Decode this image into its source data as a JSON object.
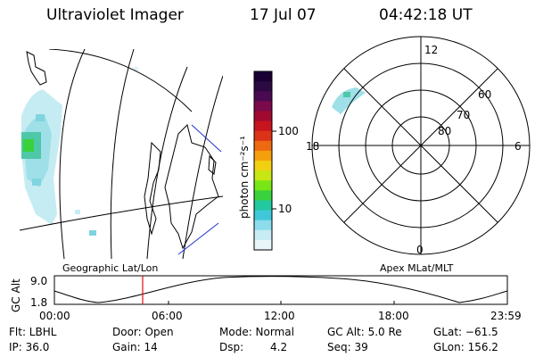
{
  "header": {
    "title": "Ultraviolet Imager",
    "date": "17 Jul 07",
    "time": "04:42:18 UT"
  },
  "colorbar": {
    "unit_label": "photon cm⁻²s⁻¹",
    "ticks": [
      "100",
      "10"
    ],
    "colors": [
      "#1a0033",
      "#2a0a40",
      "#4a0a50",
      "#7a0a4a",
      "#a00a30",
      "#c8141e",
      "#dc3218",
      "#ee6a10",
      "#f5a00a",
      "#f0d010",
      "#c8e614",
      "#78e614",
      "#3ad23c",
      "#22c8a0",
      "#40c8d8",
      "#8cdcec",
      "#c8ecf4",
      "#e8f6fa"
    ]
  },
  "geographic_panel": {
    "label": "Geographic Lat/Lon"
  },
  "polar_panel": {
    "label": "Apex MLat/MLT",
    "mlt_labels": [
      "12",
      "18",
      "6",
      "0"
    ],
    "mlat_labels": [
      "60",
      "70",
      "80"
    ]
  },
  "altitude_plot": {
    "ylabel": "GC Alt",
    "yticks": [
      "9.0",
      "1.8"
    ],
    "xticks": [
      "00:00",
      "06:00",
      "12:00",
      "18:00",
      "23:59"
    ],
    "current_time_marker_color": "#dd1111"
  },
  "status": {
    "row1": {
      "flt": "Flt: LBHL",
      "door": "Door: Open",
      "mode": "Mode: Normal",
      "gc_alt": "GC Alt: 5.0 Re",
      "glat": "GLat: −61.5"
    },
    "row2": {
      "ip": "IP: 36.0",
      "gain": "Gain: 14",
      "dsp": "Dsp:",
      "dsp_val": "4.2",
      "seq": "Seq: 39",
      "glon": "GLon: 156.2"
    }
  }
}
